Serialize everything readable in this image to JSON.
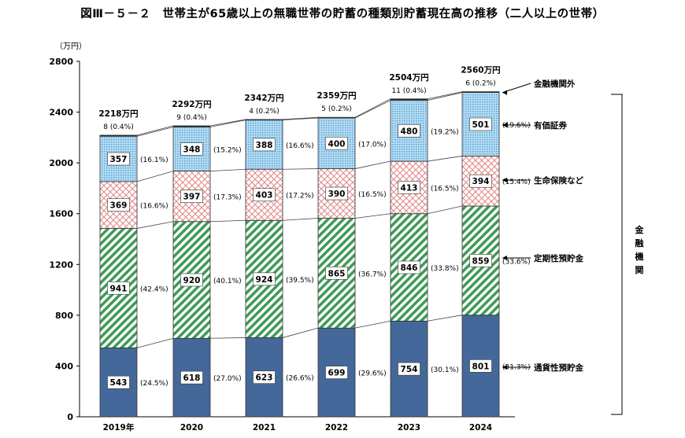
{
  "title": "図Ⅲ－５－２　世帯主が65歳以上の無職世帯の貯蓄の種類別貯蓄現在高の推移（二人以上の世帯）",
  "chart_data": {
    "type": "bar",
    "stacked": true,
    "unit_label": "（万円）",
    "ylim": [
      0,
      2800
    ],
    "yticks": [
      "0",
      "400",
      "800",
      "1200",
      "1600",
      "2000",
      "2400",
      "2800"
    ],
    "categories": [
      "2019年",
      "2020",
      "2021",
      "2022",
      "2023",
      "2024"
    ],
    "totals": [
      "2218万円",
      "2292万円",
      "2342万円",
      "2359万円",
      "2504万円",
      "2560万円"
    ],
    "total_values": [
      2218,
      2292,
      2342,
      2359,
      2504,
      2560
    ],
    "series": [
      {
        "name": "通貨性預貯金",
        "color": "#44689a",
        "pattern": "solid",
        "values": [
          543,
          618,
          623,
          699,
          754,
          801
        ],
        "shares": [
          "(24.5%)",
          "(27.0%)",
          "(26.6%)",
          "(29.6%)",
          "(30.1%)",
          "(31.3%)"
        ]
      },
      {
        "name": "定期性預貯金",
        "color": "#3d9a55",
        "pattern": "diagonal",
        "values": [
          941,
          920,
          924,
          865,
          846,
          859
        ],
        "shares": [
          "(42.4%)",
          "(40.1%)",
          "(39.5%)",
          "(36.7%)",
          "(33.8%)",
          "(33.6%)"
        ]
      },
      {
        "name": "生命保険など",
        "color": "#e89a9a",
        "pattern": "crosshatch",
        "values": [
          369,
          397,
          403,
          390,
          413,
          394
        ],
        "shares": [
          "(16.6%)",
          "(17.3%)",
          "(17.2%)",
          "(16.5%)",
          "(16.5%)",
          "(15.4%)"
        ]
      },
      {
        "name": "有価証券",
        "color": "#5aaad8",
        "pattern": "dots",
        "values": [
          357,
          348,
          388,
          400,
          480,
          501
        ],
        "shares": [
          "(16.1%)",
          "(15.2%)",
          "(16.6%)",
          "(17.0%)",
          "(19.2%)",
          "(19.6%)"
        ]
      },
      {
        "name": "金融機関外",
        "color": "#222222",
        "pattern": "solid",
        "values": [
          8,
          9,
          4,
          5,
          11,
          6
        ],
        "shares": [
          "(0.4%)",
          "(0.4%)",
          "(0.2%)",
          "(0.2%)",
          "(0.4%)",
          "(0.2%)"
        ]
      }
    ],
    "bracket_label": "金融機関"
  }
}
